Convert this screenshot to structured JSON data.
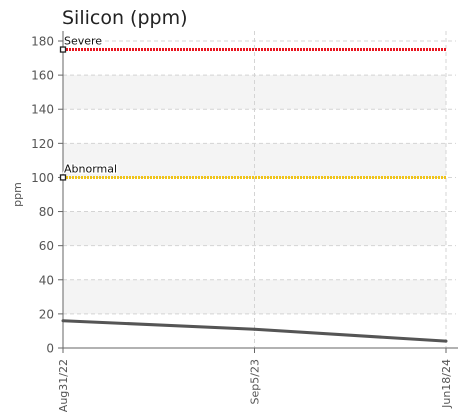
{
  "chart_data": {
    "type": "line",
    "title": "Silicon (ppm)",
    "xlabel": "",
    "ylabel": "ppm",
    "x": [
      "Aug31/22",
      "Sep5/23",
      "Jun18/24"
    ],
    "ylim": [
      0,
      180
    ],
    "yticks": [
      0,
      20,
      40,
      60,
      80,
      100,
      120,
      140,
      160,
      180
    ],
    "grid": true,
    "series": [
      {
        "values": [
          16,
          11,
          4
        ],
        "color": "#555555"
      }
    ],
    "thresholds": [
      {
        "label": "Severe",
        "value": 175,
        "color": "#e8141e"
      },
      {
        "label": "Abnormal",
        "value": 100,
        "color": "#f0c418"
      }
    ]
  }
}
